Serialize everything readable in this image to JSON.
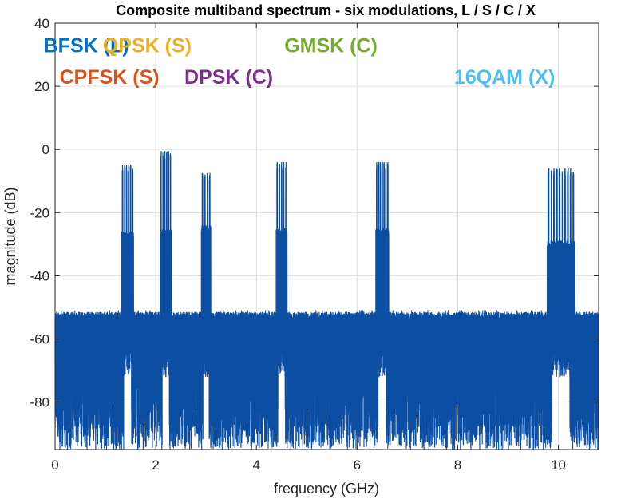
{
  "chart_data": {
    "type": "line",
    "title": "Composite multiband spectrum - six modulations, L / S / C / X",
    "xlabel": "frequency (GHz)",
    "ylabel": "magnitude (dB)",
    "xlim": [
      0,
      10.8
    ],
    "ylim": [
      -95,
      40
    ],
    "xticks": [
      0,
      2,
      4,
      6,
      8,
      10
    ],
    "yticks": [
      -80,
      -60,
      -40,
      -20,
      0,
      20,
      40
    ],
    "xtick_labels": [
      "0",
      "2",
      "4",
      "6",
      "8",
      "10"
    ],
    "ytick_labels": [
      "-80",
      "-60",
      "-40",
      "-20",
      "0",
      "20",
      "40"
    ],
    "grid": true,
    "noise_floor": {
      "min": -95,
      "max": -51,
      "typical_top": -54
    },
    "line_color": "#0b4ea2",
    "series": [
      {
        "values": [
          {
            "f": 1.44,
            "bandwidth": 0.24,
            "plateau": -26,
            "peak": -5,
            "tone_count": 6
          },
          {
            "f": 2.2,
            "bandwidth": 0.22,
            "plateau": -25,
            "peak": -0.5,
            "tone_count": 6
          },
          {
            "f": 3.0,
            "bandwidth": 0.19,
            "plateau": -24,
            "peak": -7.5,
            "tone_count": 4
          },
          {
            "f": 4.5,
            "bandwidth": 0.22,
            "plateau": -25,
            "peak": -4,
            "tone_count": 5
          },
          {
            "f": 6.5,
            "bandwidth": 0.26,
            "plateau": -25,
            "peak": -4,
            "tone_count": 7
          },
          {
            "f": 10.05,
            "bandwidth": 0.55,
            "plateau": -29,
            "peak": -6,
            "tone_count": 10
          }
        ]
      }
    ],
    "annotations": [
      {
        "text": "BFSK (L)",
        "x": 0.62,
        "y": 33,
        "color": "#0072bd"
      },
      {
        "text": "QPSK (S)",
        "x": 1.83,
        "y": 33,
        "color": "#edb120"
      },
      {
        "text": "GMSK (C)",
        "x": 5.48,
        "y": 33,
        "color": "#77ac30"
      },
      {
        "text": "CPFSK (S)",
        "x": 1.08,
        "y": 23,
        "color": "#d95319"
      },
      {
        "text": "DPSK (C)",
        "x": 3.45,
        "y": 23,
        "color": "#7e2f8e"
      },
      {
        "text": "16QAM (X)",
        "x": 8.93,
        "y": 23,
        "color": "#4dbeee"
      }
    ]
  }
}
